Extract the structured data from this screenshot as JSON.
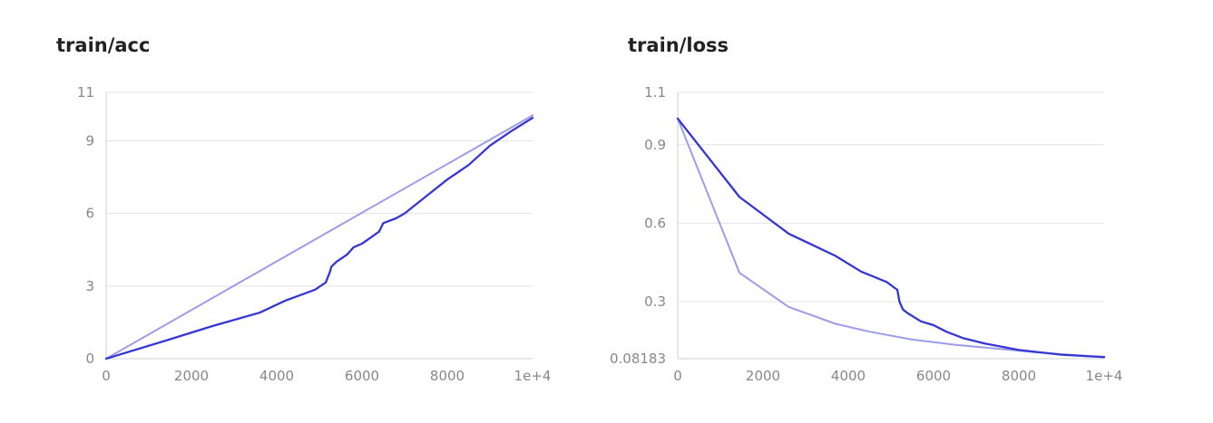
{
  "chart_data": [
    {
      "type": "line",
      "title": "train/acc",
      "xlabel": "",
      "ylabel": "",
      "xlim": [
        0,
        10000
      ],
      "ylim": [
        0,
        11
      ],
      "x_ticks": [
        "0",
        "2000",
        "4000",
        "6000",
        "8000",
        "1e+4"
      ],
      "y_ticks": [
        "0",
        "3",
        "6",
        "9",
        "11"
      ],
      "grid": true,
      "series": [
        {
          "color": "#9d9ce9",
          "x": [
            0,
            10000
          ],
          "y": [
            0,
            10.05
          ]
        },
        {
          "color": "#3636d4",
          "x": [
            0,
            1400,
            2500,
            3600,
            4200,
            4900,
            5150,
            5250,
            5280,
            5400,
            5650,
            5800,
            6000,
            6200,
            6400,
            6500,
            6800,
            7000,
            7500,
            8000,
            8500,
            9000,
            9500,
            10000
          ],
          "y": [
            0,
            0.75,
            1.35,
            1.9,
            2.4,
            2.85,
            3.15,
            3.6,
            3.8,
            4.0,
            4.3,
            4.6,
            4.75,
            5.0,
            5.25,
            5.6,
            5.8,
            6.0,
            6.7,
            7.4,
            8.0,
            8.8,
            9.4,
            9.95
          ]
        }
      ]
    },
    {
      "type": "line",
      "title": "train/loss",
      "xlabel": "",
      "ylabel": "",
      "xlim": [
        0,
        10000
      ],
      "ylim": [
        0.08183,
        1.1
      ],
      "x_ticks": [
        "0",
        "2000",
        "4000",
        "6000",
        "8000",
        "1e+4"
      ],
      "y_ticks": [
        "0.08183",
        "0.3",
        "0.6",
        "0.9",
        "1.1"
      ],
      "grid": true,
      "series": [
        {
          "color": "#9d9ce9",
          "x": [
            0,
            1450,
            2600,
            3700,
            4500,
            5500,
            6500,
            7500,
            8500,
            9500,
            10000
          ],
          "y": [
            1.0,
            0.41,
            0.28,
            0.215,
            0.185,
            0.155,
            0.135,
            0.12,
            0.105,
            0.093,
            0.088
          ]
        },
        {
          "color": "#3636d4",
          "x": [
            0,
            1450,
            2600,
            3700,
            4300,
            4900,
            5150,
            5200,
            5280,
            5400,
            5700,
            6000,
            6300,
            6700,
            7200,
            8000,
            9000,
            10000
          ],
          "y": [
            1.0,
            0.7,
            0.56,
            0.475,
            0.415,
            0.375,
            0.345,
            0.3,
            0.27,
            0.255,
            0.225,
            0.21,
            0.185,
            0.16,
            0.14,
            0.115,
            0.097,
            0.088
          ]
        }
      ]
    }
  ]
}
